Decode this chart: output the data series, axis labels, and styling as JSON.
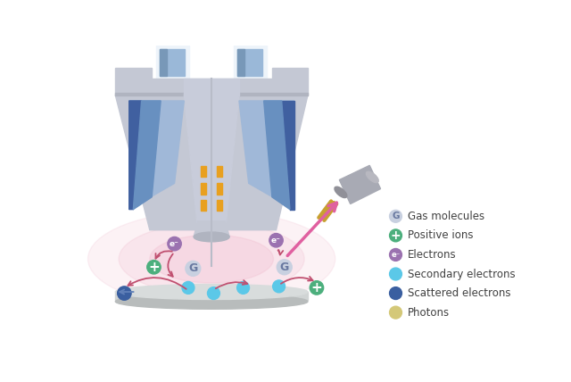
{
  "bg_color": "#ffffff",
  "legend_items": [
    {
      "label": "Gas molecules",
      "color": "#c8d0e0",
      "symbol": "G",
      "sym_color": "#6878a0"
    },
    {
      "label": "Positive ions",
      "color": "#4caf7d",
      "symbol": "+",
      "sym_color": "#ffffff"
    },
    {
      "label": "Electrons",
      "color": "#9b72b0",
      "symbol": "e⁻",
      "sym_color": "#ffffff"
    },
    {
      "label": "Secondary electrons",
      "color": "#5bc8e8",
      "symbol": "",
      "sym_color": "#ffffff"
    },
    {
      "label": "Scattered electrons",
      "color": "#3a5fa0",
      "symbol": "",
      "sym_color": "#ffffff"
    },
    {
      "label": "Photons",
      "color": "#d4c878",
      "symbol": "",
      "sym_color": "#ffffff"
    }
  ],
  "sem": {
    "body_gray": "#c4c8d4",
    "body_gray_dark": "#b0b4c0",
    "body_gray_mid": "#d0d4de",
    "inner_gray": "#c8ccda",
    "blue_light": "#a0b8d8",
    "blue_mid": "#6890c0",
    "blue_dark": "#4060a0",
    "beam_orange": "#e8a020",
    "pink_glow": "#f0b8cc",
    "pink_light": "#fad0dc",
    "det_gray": "#a8aab4",
    "det_gold": "#c8a030",
    "arrow_pink": "#e060a0",
    "arrow_blue": "#6080b8"
  }
}
